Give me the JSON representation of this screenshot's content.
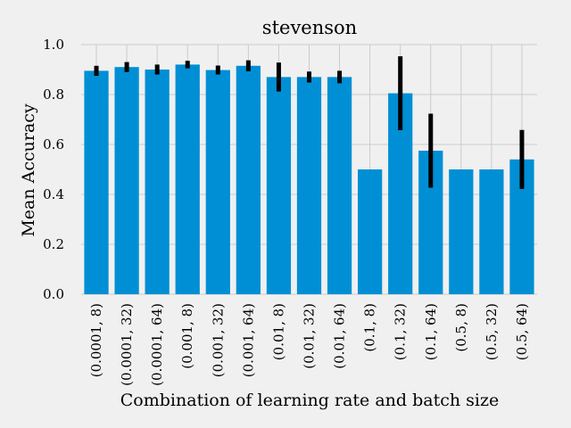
{
  "chart_data": {
    "type": "bar",
    "title": "stevenson",
    "xlabel": "Combination of learning rate and batch size",
    "ylabel": "Mean Accuracy",
    "ylim": [
      0,
      1.0
    ],
    "yticks": [
      "0.0",
      "0.2",
      "0.4",
      "0.6",
      "0.8",
      "1.0"
    ],
    "grid": true,
    "categories": [
      "(0.0001, 8)",
      "(0.0001, 32)",
      "(0.0001, 64)",
      "(0.001, 8)",
      "(0.001, 32)",
      "(0.001, 64)",
      "(0.01, 8)",
      "(0.01, 32)",
      "(0.01, 64)",
      "(0.1, 8)",
      "(0.1, 32)",
      "(0.1, 64)",
      "(0.5, 8)",
      "(0.5, 32)",
      "(0.5, 64)"
    ],
    "values": [
      0.895,
      0.91,
      0.9,
      0.92,
      0.898,
      0.915,
      0.87,
      0.87,
      0.87,
      0.5,
      0.805,
      0.575,
      0.5,
      0.5,
      0.54
    ],
    "errors": [
      0.02,
      0.02,
      0.02,
      0.015,
      0.018,
      0.022,
      0.058,
      0.022,
      0.025,
      0.0,
      0.148,
      0.148,
      0.0,
      0.0,
      0.118
    ],
    "colors": {
      "bar": "#008fd5",
      "error": "#000000",
      "background": "#f0f0f0",
      "grid": "#cbcbcb"
    }
  }
}
